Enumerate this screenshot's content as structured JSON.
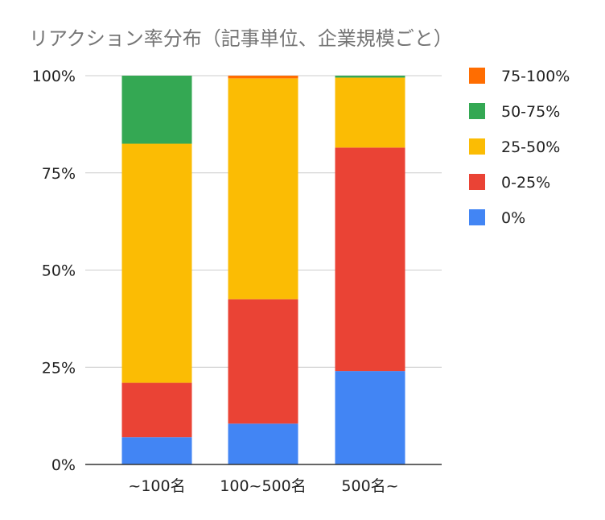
{
  "chart_data": {
    "type": "bar",
    "stacked": true,
    "percent_stacked": true,
    "title": "リアクション率分布（記事単位、企業規模ごと）",
    "xlabel": "",
    "ylabel": "",
    "categories": [
      "~100名",
      "100~500名",
      "500名~"
    ],
    "ylim": [
      0,
      100
    ],
    "yticks": [
      "0%",
      "25%",
      "50%",
      "75%",
      "100%"
    ],
    "grid": true,
    "legend_position": "right",
    "series": [
      {
        "name": "0%",
        "color": "#4285f4",
        "values": [
          7,
          10.5,
          24
        ]
      },
      {
        "name": "0-25%",
        "color": "#ea4335",
        "values": [
          14,
          32,
          57.5
        ]
      },
      {
        "name": "25-50%",
        "color": "#fbbc04",
        "values": [
          61.5,
          56.8,
          18
        ]
      },
      {
        "name": "50-75%",
        "color": "#34a853",
        "values": [
          17.5,
          0,
          0.5
        ]
      },
      {
        "name": "75-100%",
        "color": "#ff6d01",
        "values": [
          0,
          0.7,
          0
        ]
      }
    ]
  }
}
